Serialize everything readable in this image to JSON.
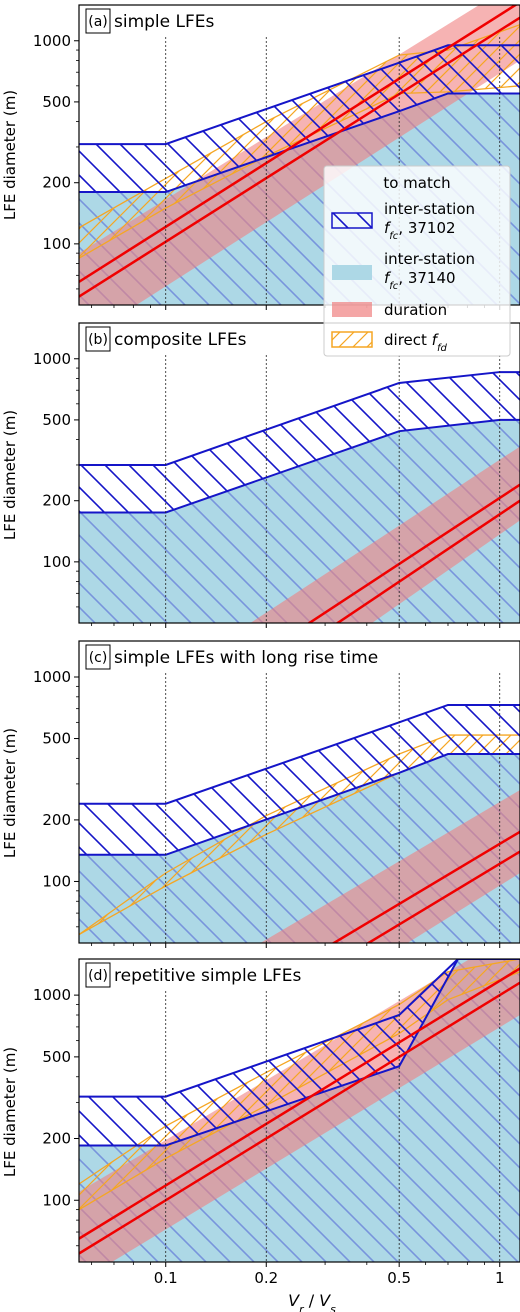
{
  "figure": {
    "ylabel": "LFE diameter (m)",
    "xlabel_v": "V",
    "xlabel_r": "r",
    "xlabel_sep": " / ",
    "xlabel_s": "s"
  },
  "legend": {
    "title": "to match",
    "location": "right, spanning panels (a) and (b)",
    "entries": [
      {
        "label_line1": "inter-station",
        "label_f": "f",
        "label_sub": "fc",
        "label_rest": ", 37102",
        "style": "hatch-blue"
      },
      {
        "label_line1": "inter-station",
        "label_f": "f",
        "label_sub": "fc",
        "label_rest": ", 37140",
        "style": "fill-lightblue"
      },
      {
        "label_line1": "duration",
        "style": "fill-red"
      },
      {
        "label_line1": "direct ",
        "label_f": "f",
        "label_sub": "fd",
        "style": "hatch-orange"
      }
    ]
  },
  "colors": {
    "blue": "#1515c8",
    "lightblue": "#add8e6",
    "red": "#f00000",
    "redband": "#f08080",
    "orange": "#f5a623"
  },
  "chart_data": [
    {
      "type": "area",
      "panel_label": "(a)",
      "title": "simple LFEs",
      "xscale": "log",
      "yscale": "log",
      "xlim": [
        0.055,
        1.15
      ],
      "ylim": [
        50,
        1500
      ],
      "xticks": [
        0.1,
        0.2,
        0.5,
        1
      ],
      "yticks": [
        100,
        200,
        500,
        1000
      ],
      "vlines": [
        0.1,
        0.2,
        0.5,
        1
      ],
      "blue_hatch": {
        "x": [
          0.055,
          0.1,
          0.5,
          0.7,
          1.15
        ],
        "low": [
          180,
          180,
          450,
          550,
          550
        ],
        "high": [
          310,
          310,
          780,
          950,
          950
        ]
      },
      "lightblue_fill": {
        "x": [
          0.055,
          0.1,
          0.5,
          0.7,
          1.15
        ],
        "low": [
          50,
          50,
          50,
          50,
          50
        ],
        "high": [
          180,
          180,
          450,
          550,
          550
        ]
      },
      "duration": {
        "x": [
          0.055,
          1.15
        ],
        "center": [
          55,
          1300
        ],
        "low": [
          33,
          800
        ],
        "high": [
          90,
          2000
        ]
      },
      "duration_line2": {
        "x": [
          0.055,
          1.15
        ],
        "y": [
          65,
          1550
        ]
      },
      "direct_ffd": {
        "x": [
          0.055,
          0.1,
          0.2,
          0.5,
          0.7,
          1.15
        ],
        "low": [
          85,
          150,
          270,
          550,
          560,
          600
        ],
        "high": [
          120,
          210,
          400,
          850,
          900,
          1200
        ]
      }
    },
    {
      "type": "area",
      "panel_label": "(b)",
      "title": "composite LFEs",
      "xscale": "log",
      "yscale": "log",
      "xlim": [
        0.055,
        1.15
      ],
      "ylim": [
        50,
        1500
      ],
      "xticks": [
        0.1,
        0.2,
        0.5,
        1
      ],
      "yticks": [
        100,
        200,
        500,
        1000
      ],
      "vlines": [
        0.1,
        0.2,
        0.5,
        1
      ],
      "blue_hatch": {
        "x": [
          0.055,
          0.1,
          0.5,
          1.0,
          1.15
        ],
        "low": [
          175,
          175,
          440,
          500,
          500
        ],
        "high": [
          300,
          300,
          760,
          860,
          860
        ]
      },
      "lightblue_fill": {
        "x": [
          0.055,
          0.1,
          0.5,
          1.0,
          1.15
        ],
        "low": [
          50,
          50,
          50,
          50,
          50
        ],
        "high": [
          175,
          175,
          440,
          500,
          500
        ]
      },
      "duration": {
        "x": [
          0.055,
          1.15
        ],
        "center": [
          9,
          240
        ],
        "low": [
          5,
          160
        ],
        "high": [
          14,
          370
        ]
      },
      "duration_line2": {
        "x": [
          0.055,
          1.15
        ],
        "y": [
          7,
          200
        ]
      },
      "direct_ffd": null
    },
    {
      "type": "area",
      "panel_label": "(c)",
      "title": "simple LFEs with long rise time",
      "xscale": "log",
      "yscale": "log",
      "xlim": [
        0.055,
        1.15
      ],
      "ylim": [
        50,
        1500
      ],
      "xticks": [
        0.1,
        0.2,
        0.5,
        1
      ],
      "yticks": [
        100,
        200,
        500,
        1000
      ],
      "vlines": [
        0.1,
        0.2,
        0.5,
        1
      ],
      "blue_hatch": {
        "x": [
          0.055,
          0.1,
          0.5,
          0.7,
          1.15
        ],
        "low": [
          135,
          135,
          340,
          420,
          420
        ],
        "high": [
          240,
          240,
          600,
          730,
          730
        ]
      },
      "lightblue_fill": {
        "x": [
          0.055,
          0.1,
          0.5,
          0.7,
          1.15
        ],
        "low": [
          50,
          50,
          50,
          50,
          50
        ],
        "high": [
          135,
          135,
          340,
          420,
          420
        ]
      },
      "duration": {
        "x": [
          0.055,
          1.15
        ],
        "center": [
          9,
          175
        ],
        "low": [
          5,
          110
        ],
        "high": [
          15,
          280
        ]
      },
      "duration_line2": {
        "x": [
          0.055,
          1.15
        ],
        "y": [
          7,
          140
        ]
      },
      "direct_ffd": {
        "x": [
          0.055,
          0.1,
          0.2,
          0.5,
          0.7,
          1.15
        ],
        "low": [
          55,
          95,
          170,
          340,
          420,
          420
        ],
        "high": [
          55,
          110,
          210,
          420,
          520,
          520
        ]
      }
    },
    {
      "type": "area",
      "panel_label": "(d)",
      "title": "repetitive simple LFEs",
      "xscale": "log",
      "yscale": "log",
      "xlim": [
        0.055,
        1.15
      ],
      "ylim": [
        50,
        1500
      ],
      "xticks": [
        0.1,
        0.2,
        0.5,
        1
      ],
      "yticks": [
        100,
        200,
        500,
        1000
      ],
      "xtick_labels": [
        "0.1",
        "0.2",
        "0.5",
        "1"
      ],
      "ytick_labels": [
        "100",
        "200",
        "500",
        "1000"
      ],
      "vlines": [
        0.1,
        0.2,
        0.5,
        1
      ],
      "blue_hatch": {
        "x": [
          0.055,
          0.1,
          0.5,
          0.75,
          1.15
        ],
        "low": [
          185,
          185,
          450,
          1500,
          1500
        ],
        "high": [
          320,
          320,
          800,
          1500,
          1500
        ]
      },
      "lightblue_fill": {
        "x": [
          0.055,
          0.1,
          0.5,
          0.75,
          1.15
        ],
        "low": [
          50,
          50,
          50,
          50,
          50
        ],
        "high": [
          185,
          185,
          450,
          1500,
          1500
        ]
      },
      "duration": {
        "x": [
          0.055,
          1.15
        ],
        "center": [
          65,
          1350
        ],
        "low": [
          40,
          800
        ],
        "high": [
          110,
          2100
        ]
      },
      "duration_line2": {
        "x": [
          0.055,
          1.15
        ],
        "y": [
          55,
          1150
        ]
      },
      "direct_ffd": {
        "x": [
          0.055,
          0.1,
          0.2,
          0.5,
          0.7,
          1.15
        ],
        "low": [
          90,
          160,
          290,
          650,
          950,
          1300
        ],
        "high": [
          120,
          230,
          420,
          900,
          1300,
          1500
        ]
      }
    }
  ]
}
